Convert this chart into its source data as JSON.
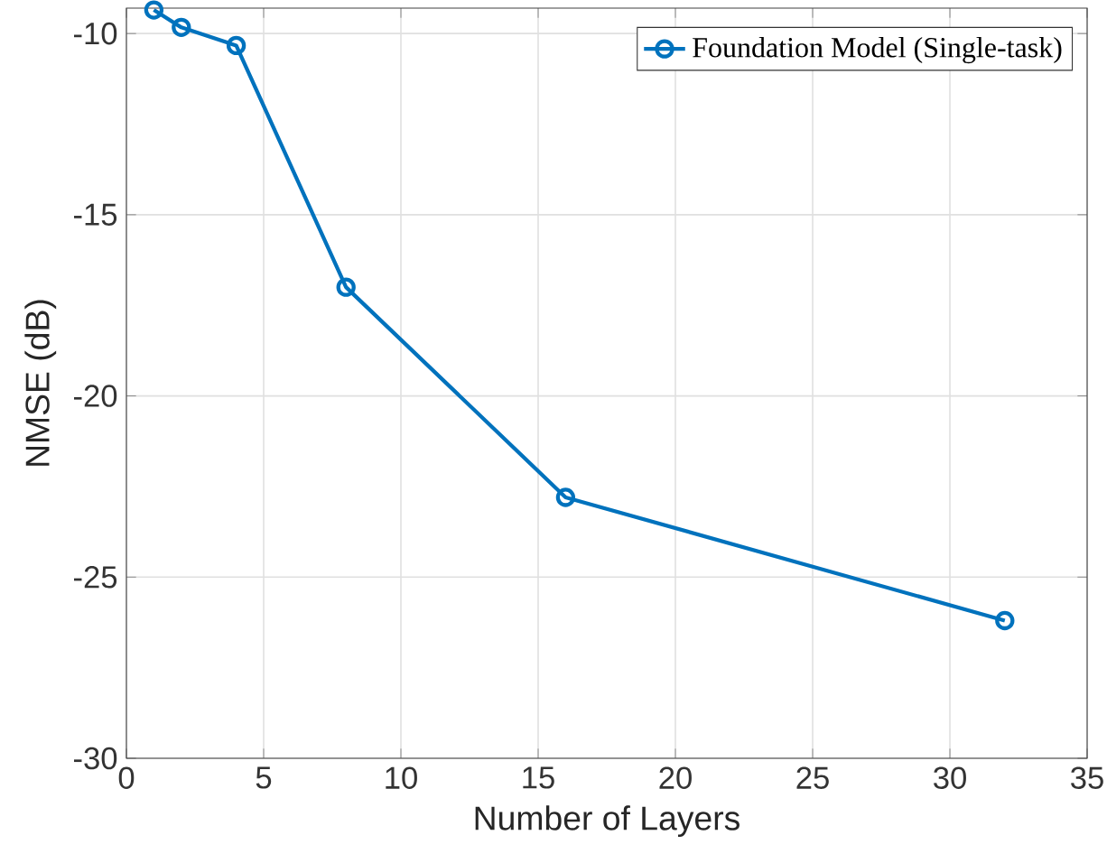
{
  "chart_data": {
    "type": "line",
    "xlabel": "Number of Layers",
    "ylabel": "NMSE (dB)",
    "x": [
      1,
      2,
      4,
      8,
      16,
      32
    ],
    "series": [
      {
        "name": "Foundation Model (Single-task)",
        "color": "#0072bd",
        "values": [
          -9.35,
          -9.83,
          -10.33,
          -17.0,
          -22.8,
          -26.2
        ]
      }
    ],
    "xlim": [
      0,
      35
    ],
    "ylim": [
      -30,
      -9.3
    ],
    "xticks": [
      0,
      5,
      10,
      15,
      20,
      25,
      30,
      35
    ],
    "yticks": [
      -30,
      -25,
      -20,
      -15,
      -10
    ],
    "grid": true,
    "legend": "top right",
    "marker": "circle",
    "line_style": "solid"
  }
}
